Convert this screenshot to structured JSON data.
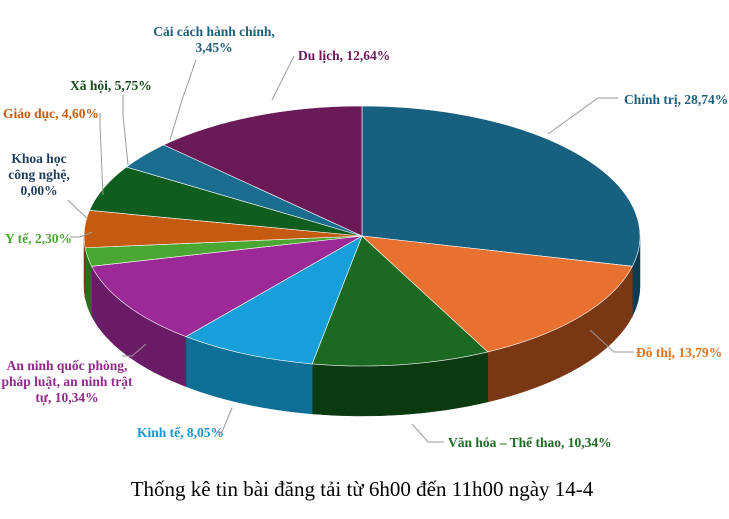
{
  "chart_data": {
    "type": "pie",
    "title": "Thống kê tin bài đăng tải từ 6h00 đến 11h00 ngày 14-4",
    "slices": [
      {
        "label": "Chính trị, 28,74%",
        "value": 28.74,
        "color": "#17607f",
        "side": "#0d3c52"
      },
      {
        "label": "Đô thị, 13,79%",
        "value": 13.79,
        "color": "#e87130",
        "side": "#7a3714"
      },
      {
        "label": "Văn hóa – Thể thao, 10,34%",
        "value": 10.34,
        "color": "#1c6a22",
        "side": "#0c3a10"
      },
      {
        "label": "Kinh tế, 8,05%",
        "value": 8.05,
        "color": "#169fd8",
        "side": "#0d6e96"
      },
      {
        "label": "An ninh quốc phòng, pháp luật, an ninh trật tự, 10,34%",
        "value": 10.34,
        "color": "#9b2a96",
        "side": "#6a1b66"
      },
      {
        "label": "Y tế, 2,30%",
        "value": 2.3,
        "color": "#4aa832",
        "side": "#2d6b1e"
      },
      {
        "label": "Khoa học công nghệ, 0,00%",
        "value": 0.0,
        "color": "#3a7fbf",
        "side": "#234f78"
      },
      {
        "label": "Giáo dục, 4,60%",
        "value": 4.6,
        "color": "#c55a11",
        "side": "#7a360a"
      },
      {
        "label": "Xã hội, 5,75%",
        "value": 5.75,
        "color": "#0f5d1f",
        "side": "#073410"
      },
      {
        "label": "Cải cách hành chính, 3,45%",
        "value": 3.45,
        "color": "#1b6d90",
        "side": "#0e4259"
      },
      {
        "label": "Du lịch, 12,64%",
        "value": 12.64,
        "color": "#6a1a57",
        "side": "#3f0f34"
      }
    ],
    "label_colors": [
      "#1f5f7a",
      "#e0701c",
      "#1e6b25",
      "#1596cf",
      "#8f2a8c",
      "#4aa832",
      "#1f3f5f",
      "#c55a11",
      "#174d1a",
      "#1f5f7a",
      "#6a1a57"
    ],
    "legend": "none"
  }
}
